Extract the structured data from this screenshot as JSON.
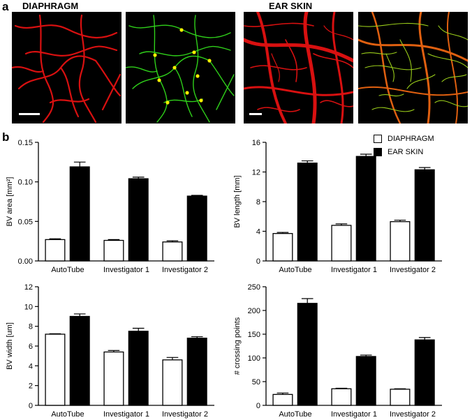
{
  "panel_a": {
    "letter": "a",
    "titles": [
      "DIAPHRAGM",
      "EAR SKIN"
    ]
  },
  "panel_b": {
    "letter": "b"
  },
  "colors": {
    "diaphragm_fill": "#ffffff",
    "ear_skin_fill": "#000000",
    "vessel_red": "#e01010",
    "skeleton_green": "#2fd01a",
    "node_yellow": "#f4f000"
  },
  "legend": [
    {
      "label": "DIAPHRAGM",
      "fill": "#ffffff"
    },
    {
      "label": "EAR SKIN",
      "fill": "#000000"
    }
  ],
  "chart_data": [
    {
      "type": "bar",
      "categories": [
        "AutoTube",
        "Investigator 1",
        "Investigator 2"
      ],
      "series": [
        {
          "name": "DIAPHRAGM",
          "values": [
            0.027,
            0.026,
            0.024
          ],
          "errors": [
            0.001,
            0.001,
            0.0015
          ]
        },
        {
          "name": "EAR SKIN",
          "values": [
            0.119,
            0.104,
            0.082
          ],
          "errors": [
            0.006,
            0.002,
            0.001
          ]
        }
      ],
      "ylabel": "BV area [mm²]",
      "ylim": [
        0,
        0.15
      ],
      "yticks": [
        0.0,
        0.05,
        0.1,
        0.15
      ],
      "ytick_labels": [
        "0.00",
        "0.05",
        "0.10",
        "0.15"
      ]
    },
    {
      "type": "bar",
      "categories": [
        "AutoTube",
        "Investigator 1",
        "Investigator 2"
      ],
      "series": [
        {
          "name": "DIAPHRAGM",
          "values": [
            3.7,
            4.8,
            5.3
          ],
          "errors": [
            0.15,
            0.2,
            0.2
          ]
        },
        {
          "name": "EAR SKIN",
          "values": [
            13.2,
            14.1,
            12.3
          ],
          "errors": [
            0.3,
            0.3,
            0.3
          ]
        }
      ],
      "ylabel": "BV length [mm]",
      "ylim": [
        0,
        16
      ],
      "yticks": [
        0,
        4,
        8,
        12,
        16
      ],
      "ytick_labels": [
        "0",
        "4",
        "8",
        "12",
        "16"
      ]
    },
    {
      "type": "bar",
      "categories": [
        "AutoTube",
        "Investigator 1",
        "Investigator 2"
      ],
      "series": [
        {
          "name": "DIAPHRAGM",
          "values": [
            7.2,
            5.4,
            4.6
          ],
          "errors": [
            0.05,
            0.15,
            0.25
          ]
        },
        {
          "name": "EAR SKIN",
          "values": [
            9.0,
            7.5,
            6.8
          ],
          "errors": [
            0.25,
            0.3,
            0.15
          ]
        }
      ],
      "ylabel": "BV width [um]",
      "ylim": [
        0,
        12
      ],
      "yticks": [
        0,
        2,
        4,
        6,
        8,
        10,
        12
      ],
      "ytick_labels": [
        "0",
        "2",
        "4",
        "6",
        "8",
        "10",
        "12"
      ]
    },
    {
      "type": "bar",
      "categories": [
        "AutoTube",
        "Investigator 1",
        "Investigator 2"
      ],
      "series": [
        {
          "name": "DIAPHRAGM",
          "values": [
            23,
            35,
            34
          ],
          "errors": [
            3,
            1,
            1
          ]
        },
        {
          "name": "EAR SKIN",
          "values": [
            215,
            103,
            138
          ],
          "errors": [
            10,
            3,
            5
          ]
        }
      ],
      "ylabel": "# crossing points",
      "ylim": [
        0,
        250
      ],
      "yticks": [
        0,
        50,
        100,
        150,
        200,
        250
      ],
      "ytick_labels": [
        "0",
        "50",
        "100",
        "150",
        "200",
        "250"
      ]
    }
  ]
}
